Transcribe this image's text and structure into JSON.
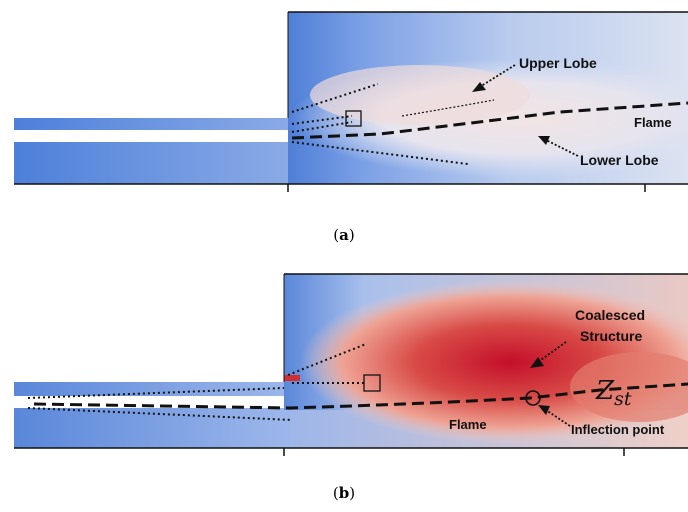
{
  "panels": [
    {
      "caption": "a",
      "annotations": {
        "upper_lobe": "Upper Lobe",
        "flame": "Flame",
        "lower_lobe": "Lower Lobe"
      }
    },
    {
      "caption": "b",
      "annotations": {
        "coalesced_line1": "Coalesced",
        "coalesced_line2": "Structure",
        "zst_symbol": "Z",
        "zst_subscript": "st",
        "flame": "Flame",
        "inflection": "Inflection point"
      }
    }
  ],
  "colors": {
    "background_blue": "#4a78d4",
    "light_blue": "#c9d6f0",
    "pale": "#eef0f4",
    "warm_red": "#c8102e",
    "light_red": "#f2b3a5"
  }
}
